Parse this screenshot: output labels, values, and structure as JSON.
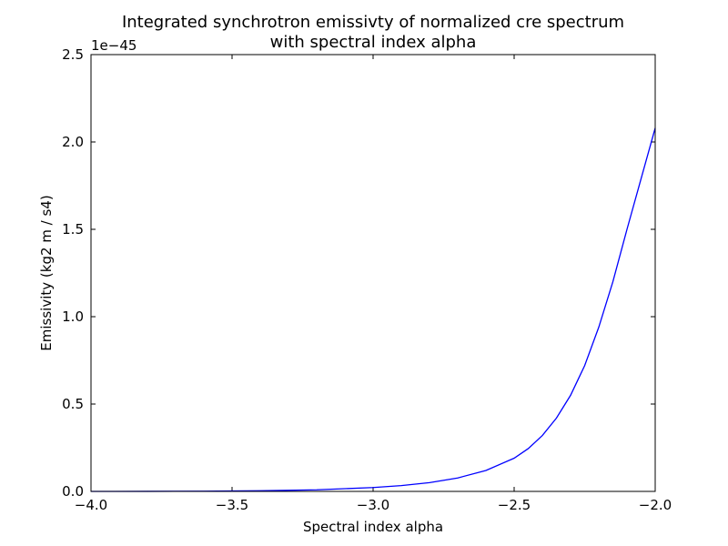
{
  "chart_data": {
    "type": "line",
    "title_line1": "Integrated synchrotron emissivty of normalized cre spectrum",
    "title_line2": "with spectral index alpha",
    "xlabel": "Spectral index alpha",
    "ylabel": "Emissivity (kg2 m / s4)",
    "offset_text": "1e−45",
    "xlim": [
      -4.0,
      -2.0
    ],
    "ylim": [
      0.0,
      2.5
    ],
    "y_scale_multiplier": "1e-45",
    "grid": false,
    "legend": "none",
    "x_ticks": [
      -4.0,
      -3.5,
      -3.0,
      -2.5,
      -2.0
    ],
    "x_tick_labels": [
      "−4.0",
      "−3.5",
      "−3.0",
      "−2.5",
      "−2.0"
    ],
    "y_ticks": [
      0.0,
      0.5,
      1.0,
      1.5,
      2.0,
      2.5
    ],
    "y_tick_labels": [
      "0.0",
      "0.5",
      "1.0",
      "1.5",
      "2.0",
      "2.5"
    ],
    "series": [
      {
        "color": "#0000ff",
        "x": [
          -4.0,
          -3.8,
          -3.6,
          -3.4,
          -3.2,
          -3.0,
          -2.9,
          -2.8,
          -2.7,
          -2.6,
          -2.5,
          -2.45,
          -2.4,
          -2.35,
          -2.3,
          -2.25,
          -2.2,
          -2.15,
          -2.1,
          -2.05,
          -2.0
        ],
        "y": [
          0.0,
          0.0004,
          0.0013,
          0.0035,
          0.009,
          0.022,
          0.033,
          0.05,
          0.077,
          0.12,
          0.19,
          0.245,
          0.32,
          0.42,
          0.55,
          0.72,
          0.94,
          1.2,
          1.5,
          1.79,
          2.08
        ]
      }
    ]
  }
}
